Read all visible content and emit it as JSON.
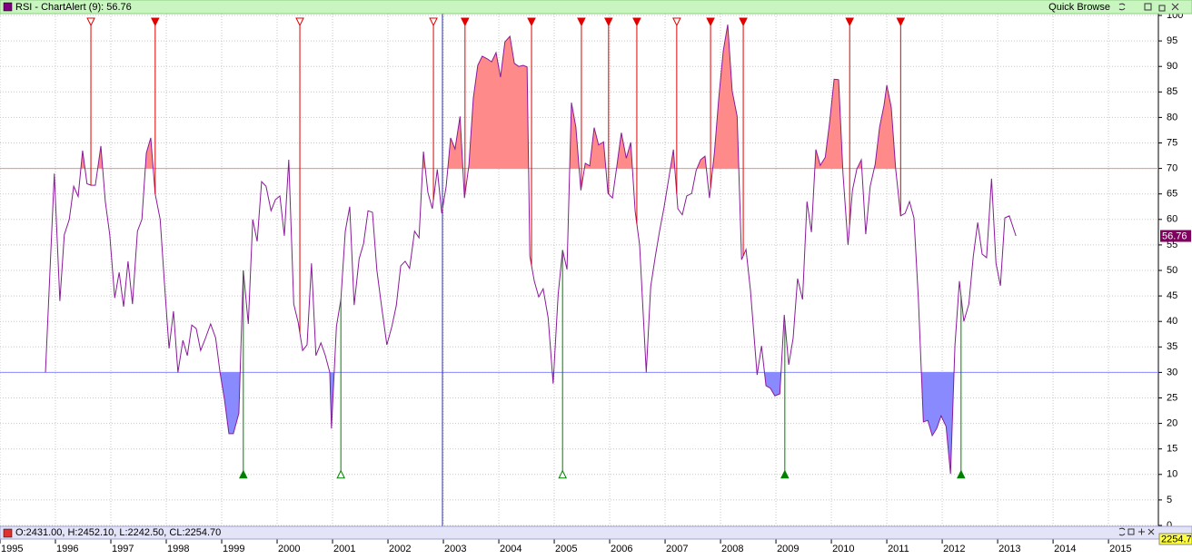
{
  "header": {
    "title": "RSI - ChartAlert (9): 56.76",
    "quick_browse": "Quick Browse"
  },
  "chart_data": {
    "type": "line",
    "series": [
      {
        "color": "#8a1a9a",
        "x": [
          1995.82,
          1995.98,
          1996.08,
          1996.16,
          1996.25,
          1996.33,
          1996.41,
          1996.49,
          1996.57,
          1996.64,
          1996.72,
          1996.82,
          1996.9,
          1996.98,
          1997.07,
          1997.15,
          1997.23,
          1997.31,
          1997.39,
          1997.48,
          1997.56,
          1997.64,
          1997.72,
          1997.8,
          1997.89,
          1997.97,
          1998.05,
          1998.13,
          1998.21,
          1998.3,
          1998.38,
          1998.46,
          1998.54,
          1998.62,
          1998.7,
          1998.8,
          1998.89,
          1998.97,
          1999.05,
          1999.13,
          1999.21,
          1999.31,
          1999.39,
          1999.48,
          1999.56,
          1999.64,
          1999.72,
          1999.8,
          1999.89,
          1999.97,
          2000.05,
          2000.13,
          2000.21,
          2000.3,
          2000.38,
          2000.46,
          2000.54,
          2000.62,
          2000.7,
          2000.79,
          2000.87,
          2000.95,
          2000.98,
          2001.07,
          2001.15,
          2001.23,
          2001.31,
          2001.39,
          2001.48,
          2001.56,
          2001.64,
          2001.72,
          2001.8,
          2001.89,
          2001.98,
          2002.07,
          2002.15,
          2002.23,
          2002.31,
          2002.39,
          2002.48,
          2002.56,
          2002.64,
          2002.72,
          2002.8,
          2002.89,
          2002.97,
          2003.05,
          2003.13,
          2003.21,
          2003.3,
          2003.38,
          2003.46,
          2003.54,
          2003.62,
          2003.7,
          2003.79,
          2003.87,
          2003.95,
          2004.03,
          2004.11,
          2004.2,
          2004.28,
          2004.36,
          2004.44,
          2004.51,
          2004.56,
          2004.64,
          2004.72,
          2004.8,
          2004.89,
          2004.98,
          2005.07,
          2005.15,
          2005.23,
          2005.31,
          2005.39,
          2005.48,
          2005.56,
          2005.64,
          2005.72,
          2005.8,
          2005.89,
          2005.97,
          2006.05,
          2006.13,
          2006.21,
          2006.3,
          2006.38,
          2006.46,
          2006.54,
          2006.66,
          2006.74,
          2006.82,
          2006.9,
          2006.98,
          2007.07,
          2007.15,
          2007.23,
          2007.31,
          2007.39,
          2007.48,
          2007.56,
          2007.64,
          2007.72,
          2007.8,
          2007.89,
          2007.97,
          2008.05,
          2008.13,
          2008.21,
          2008.3,
          2008.38,
          2008.46,
          2008.54,
          2008.66,
          2008.74,
          2008.82,
          2008.9,
          2008.98,
          2009.07,
          2009.15,
          2009.23,
          2009.31,
          2009.39,
          2009.48,
          2009.56,
          2009.64,
          2009.72,
          2009.8,
          2009.89,
          2009.97,
          2010.05,
          2010.13,
          2010.21,
          2010.3,
          2010.38,
          2010.46,
          2010.54,
          2010.62,
          2010.7,
          2010.79,
          2010.87,
          2010.95,
          2011.0,
          2011.08,
          2011.16,
          2011.25,
          2011.33,
          2011.41,
          2011.49,
          2011.57,
          2011.66,
          2011.74,
          2011.82,
          2011.9,
          2011.98,
          2012.07,
          2012.15,
          2012.23,
          2012.31,
          2012.39,
          2012.48,
          2012.56,
          2012.64,
          2012.72,
          2012.8,
          2012.89,
          2012.97,
          2013.05,
          2013.13,
          2013.21,
          2013.33
        ],
        "values": [
          30,
          69,
          44,
          57,
          60,
          66.5,
          64.5,
          73.5,
          67,
          66.7,
          66.7,
          74.4,
          63.5,
          57,
          44.6,
          49.6,
          42.9,
          51.8,
          43.4,
          57.7,
          60,
          73,
          76,
          65,
          60,
          47,
          34.7,
          42,
          30,
          36.3,
          33.3,
          39.3,
          38.6,
          34.3,
          36.5,
          39.5,
          36.8,
          30,
          24.7,
          18,
          18,
          22,
          50,
          39.5,
          60,
          55.7,
          67.4,
          66.5,
          61.7,
          63.9,
          64.6,
          56.8,
          71.7,
          43.4,
          39.8,
          34.3,
          35.4,
          51.4,
          33.3,
          35.8,
          33.3,
          30,
          19,
          39,
          44.3,
          57.7,
          62.5,
          43.2,
          52.3,
          55.3,
          61.7,
          61.4,
          50,
          42.5,
          35.4,
          39,
          43.1,
          50.9,
          51.8,
          50.4,
          57.7,
          56.4,
          73.3,
          65.3,
          62.1,
          69.8,
          61.2,
          66.5,
          76,
          73.8,
          80.2,
          64.2,
          70.6,
          83.8,
          90.2,
          92,
          91.5,
          90.9,
          92.7,
          87.9,
          94.8,
          95.9,
          90.6,
          90,
          90.2,
          89.9,
          52.8,
          47.9,
          44.8,
          46.4,
          40.7,
          27.8,
          45.2,
          54,
          50.2,
          82.9,
          78.1,
          65.7,
          71,
          70.5,
          78,
          74.6,
          75.2,
          65.1,
          64.2,
          70.5,
          77,
          72,
          75.1,
          61.6,
          55,
          30,
          46.8,
          52.5,
          57.7,
          62.3,
          68.3,
          73.7,
          62.1,
          60.9,
          64.6,
          65.1,
          69.6,
          71.7,
          72.4,
          64.2,
          73.1,
          84,
          93.1,
          98.2,
          85.2,
          80.2,
          52.1,
          54.1,
          46.1,
          29.5,
          35.2,
          27.4,
          26.9,
          25.4,
          25.8,
          41.3,
          31.5,
          36.7,
          48.4,
          44.3,
          63.5,
          57.5,
          73.7,
          70.6,
          72.2,
          79.2,
          87.5,
          87.4,
          68.9,
          55,
          65.7,
          69.9,
          71.7,
          57.1,
          66.5,
          70.8,
          78.1,
          82.4,
          86.3,
          82,
          69.9,
          60.7,
          61.2,
          63.5,
          60.3,
          44.3,
          20.3,
          20.6,
          17.6,
          19,
          21.5,
          19.4,
          10.1,
          35.4,
          47.9,
          40,
          43.4,
          52.7,
          59.4,
          53.2,
          52.5,
          68,
          51.4,
          47,
          60.3,
          60.7,
          56.76
        ]
      }
    ],
    "overbought": 70,
    "oversold": 30,
    "overbought_color": "#ff8a8a",
    "oversold_color": "#8a8aff",
    "signals": [
      {
        "x": 1996.64,
        "kind": "sell",
        "filled": false
      },
      {
        "x": 1997.8,
        "kind": "sell",
        "filled": true
      },
      {
        "x": 2000.41,
        "kind": "sell",
        "filled": false
      },
      {
        "x": 2002.82,
        "kind": "sell",
        "filled": false
      },
      {
        "x": 2003.39,
        "kind": "sell",
        "filled": true
      },
      {
        "x": 2004.59,
        "kind": "sell",
        "filled": true
      },
      {
        "x": 2005.49,
        "kind": "sell",
        "filled": true
      },
      {
        "x": 2005.98,
        "kind": "sell",
        "filled": true
      },
      {
        "x": 2006.49,
        "kind": "sell",
        "filled": true
      },
      {
        "x": 2007.21,
        "kind": "sell",
        "filled": false
      },
      {
        "x": 2007.82,
        "kind": "sell",
        "filled": true
      },
      {
        "x": 2008.41,
        "kind": "sell",
        "filled": true
      },
      {
        "x": 2010.33,
        "kind": "sell",
        "filled": true
      },
      {
        "x": 2011.25,
        "kind": "sell",
        "filled": true
      },
      {
        "x": 1999.39,
        "kind": "buy",
        "filled": true
      },
      {
        "x": 2001.15,
        "kind": "buy",
        "filled": false
      },
      {
        "x": 2005.15,
        "kind": "buy",
        "filled": false
      },
      {
        "x": 2009.16,
        "kind": "buy",
        "filled": true
      },
      {
        "x": 2012.34,
        "kind": "buy",
        "filled": true
      }
    ],
    "xlim": [
      1995,
      2015.9
    ],
    "xticks": [
      1995,
      1996,
      1997,
      1998,
      1999,
      2000,
      2001,
      2002,
      2003,
      2004,
      2005,
      2006,
      2007,
      2008,
      2009,
      2010,
      2011,
      2012,
      2013,
      2014,
      2015
    ],
    "ylim": [
      0,
      100
    ],
    "yticks": [
      0,
      5,
      10,
      15,
      20,
      25,
      30,
      35,
      40,
      45,
      50,
      55,
      60,
      65,
      70,
      75,
      80,
      85,
      90,
      95,
      100
    ],
    "grid": true
  },
  "footer": {
    "ohlc": "O:2431.00, H:2452.10, L:2242.50, CL:2254.70",
    "price_label": "2254.7"
  }
}
